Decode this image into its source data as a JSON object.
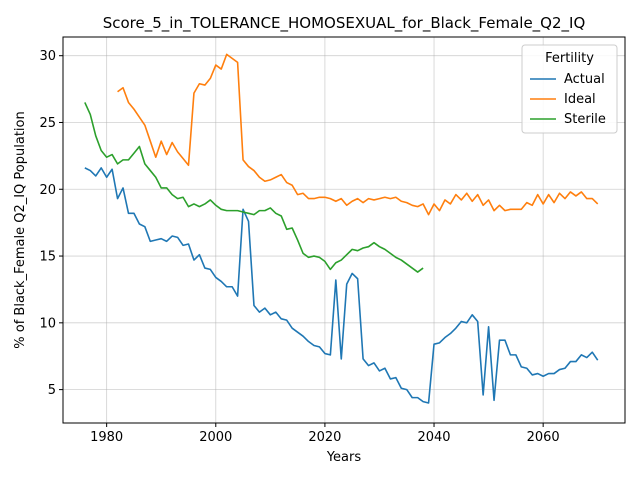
{
  "chart_data": {
    "type": "line",
    "title": "Score_5_in_TOLERANCE_HOMOSEXUAL_for_Black_Female_Q2_IQ",
    "xlabel": "Years",
    "ylabel": "% of Black_Female Q2_IQ Population",
    "xlim": [
      1972,
      2075
    ],
    "ylim": [
      2.5,
      31.4
    ],
    "xticks": [
      1980,
      2000,
      2020,
      2040,
      2060
    ],
    "yticks": [
      5,
      10,
      15,
      20,
      25,
      30
    ],
    "grid": true,
    "legend": {
      "title": "Fertility",
      "placement": "top-right"
    },
    "series": [
      {
        "name": "Actual",
        "color": "#1f77b4",
        "x": [
          1976,
          1977,
          1978,
          1979,
          1980,
          1981,
          1982,
          1983,
          1984,
          1985,
          1986,
          1987,
          1988,
          1989,
          1990,
          1991,
          1992,
          1993,
          1994,
          1995,
          1996,
          1997,
          1998,
          1999,
          2000,
          2001,
          2002,
          2003,
          2004,
          2005,
          2006,
          2007,
          2008,
          2009,
          2010,
          2011,
          2012,
          2013,
          2014,
          2015,
          2016,
          2017,
          2018,
          2019,
          2020,
          2021,
          2022,
          2023,
          2024,
          2025,
          2026,
          2027,
          2028,
          2029,
          2030,
          2031,
          2032,
          2033,
          2034,
          2035,
          2036,
          2037,
          2038,
          2039,
          2040,
          2041,
          2042,
          2043,
          2044,
          2045,
          2046,
          2047,
          2048,
          2049,
          2050,
          2051,
          2052,
          2053,
          2054,
          2055,
          2056,
          2057,
          2058,
          2059,
          2060,
          2061,
          2062,
          2063,
          2064,
          2065,
          2066,
          2067,
          2068,
          2069,
          2070
        ],
        "values": [
          21.6,
          21.4,
          21.0,
          21.6,
          20.9,
          21.5,
          19.3,
          20.1,
          18.2,
          18.2,
          17.4,
          17.2,
          16.1,
          16.2,
          16.3,
          16.1,
          16.5,
          16.4,
          15.8,
          15.9,
          14.7,
          15.1,
          14.1,
          14.0,
          13.4,
          13.1,
          12.7,
          12.7,
          12.0,
          18.5,
          17.6,
          11.3,
          10.8,
          11.1,
          10.6,
          10.8,
          10.3,
          10.2,
          9.6,
          9.3,
          9.0,
          8.6,
          8.3,
          8.2,
          7.7,
          7.6,
          13.2,
          7.3,
          12.9,
          13.7,
          13.3,
          7.3,
          6.8,
          7.0,
          6.4,
          6.6,
          5.8,
          5.9,
          5.1,
          5.0,
          4.4,
          4.4,
          4.1,
          4.0,
          8.4,
          8.5,
          8.9,
          9.2,
          9.6,
          10.1,
          10.0,
          10.6,
          10.1,
          4.6,
          9.7,
          4.2,
          8.7,
          8.7,
          7.6,
          7.6,
          6.7,
          6.6,
          6.1,
          6.2,
          6.0,
          6.2,
          6.2,
          6.5,
          6.6,
          7.1,
          7.1,
          7.6,
          7.4,
          7.8,
          7.2
        ]
      },
      {
        "name": "Ideal",
        "color": "#ff7f0e",
        "x": [
          1982,
          1983,
          1984,
          1985,
          1986,
          1987,
          1988,
          1989,
          1990,
          1991,
          1992,
          1993,
          1994,
          1995,
          1996,
          1997,
          1998,
          1999,
          2000,
          2001,
          2002,
          2003,
          2004,
          2005,
          2006,
          2007,
          2008,
          2009,
          2010,
          2011,
          2012,
          2013,
          2014,
          2015,
          2016,
          2017,
          2018,
          2019,
          2020,
          2021,
          2022,
          2023,
          2024,
          2025,
          2026,
          2027,
          2028,
          2029,
          2030,
          2031,
          2032,
          2033,
          2034,
          2035,
          2036,
          2037,
          2038,
          2039,
          2040,
          2041,
          2042,
          2043,
          2044,
          2045,
          2046,
          2047,
          2048,
          2049,
          2050,
          2051,
          2052,
          2053,
          2054,
          2055,
          2056,
          2057,
          2058,
          2059,
          2060,
          2061,
          2062,
          2063,
          2064,
          2065,
          2066,
          2067,
          2068,
          2069,
          2070
        ],
        "values": [
          27.3,
          27.6,
          26.5,
          26.0,
          25.4,
          24.8,
          23.6,
          22.4,
          23.6,
          22.6,
          23.5,
          22.8,
          22.3,
          21.8,
          27.2,
          27.9,
          27.8,
          28.3,
          29.3,
          29.0,
          30.1,
          29.8,
          29.5,
          22.2,
          21.7,
          21.4,
          20.9,
          20.6,
          20.7,
          20.9,
          21.1,
          20.5,
          20.3,
          19.6,
          19.7,
          19.3,
          19.3,
          19.4,
          19.4,
          19.3,
          19.1,
          19.3,
          18.8,
          19.1,
          19.3,
          19.0,
          19.3,
          19.2,
          19.3,
          19.4,
          19.3,
          19.4,
          19.1,
          19.0,
          18.8,
          18.7,
          18.9,
          18.1,
          18.9,
          18.4,
          19.2,
          18.9,
          19.6,
          19.2,
          19.7,
          19.1,
          19.6,
          18.8,
          19.2,
          18.4,
          18.8,
          18.4,
          18.5,
          18.5,
          18.5,
          19.0,
          18.8,
          19.6,
          18.9,
          19.6,
          19.0,
          19.7,
          19.3,
          19.8,
          19.5,
          19.8,
          19.3,
          19.3,
          18.9
        ]
      },
      {
        "name": "Sterile",
        "color": "#2ca02c",
        "x": [
          1976,
          1977,
          1978,
          1979,
          1980,
          1981,
          1982,
          1983,
          1984,
          1985,
          1986,
          1987,
          1988,
          1989,
          1990,
          1991,
          1992,
          1993,
          1994,
          1995,
          1996,
          1997,
          1998,
          1999,
          2000,
          2001,
          2002,
          2003,
          2004,
          2005,
          2006,
          2007,
          2008,
          2009,
          2010,
          2011,
          2012,
          2013,
          2014,
          2015,
          2016,
          2017,
          2018,
          2019,
          2020,
          2021,
          2022,
          2023,
          2024,
          2025,
          2026,
          2027,
          2028,
          2029,
          2030,
          2031,
          2032,
          2033,
          2034,
          2035,
          2036,
          2037,
          2038
        ],
        "values": [
          26.5,
          25.6,
          24.0,
          22.9,
          22.4,
          22.6,
          21.9,
          22.2,
          22.2,
          22.7,
          23.2,
          21.9,
          21.4,
          20.9,
          20.1,
          20.1,
          19.6,
          19.3,
          19.4,
          18.7,
          18.9,
          18.7,
          18.9,
          19.2,
          18.8,
          18.5,
          18.4,
          18.4,
          18.4,
          18.3,
          18.2,
          18.1,
          18.4,
          18.4,
          18.6,
          18.2,
          18.0,
          17.0,
          17.1,
          16.2,
          15.2,
          14.9,
          15.0,
          14.9,
          14.6,
          14.0,
          14.5,
          14.7,
          15.1,
          15.5,
          15.4,
          15.6,
          15.7,
          16.0,
          15.7,
          15.5,
          15.2,
          14.9,
          14.7,
          14.4,
          14.1,
          13.8,
          14.1
        ]
      }
    ]
  }
}
